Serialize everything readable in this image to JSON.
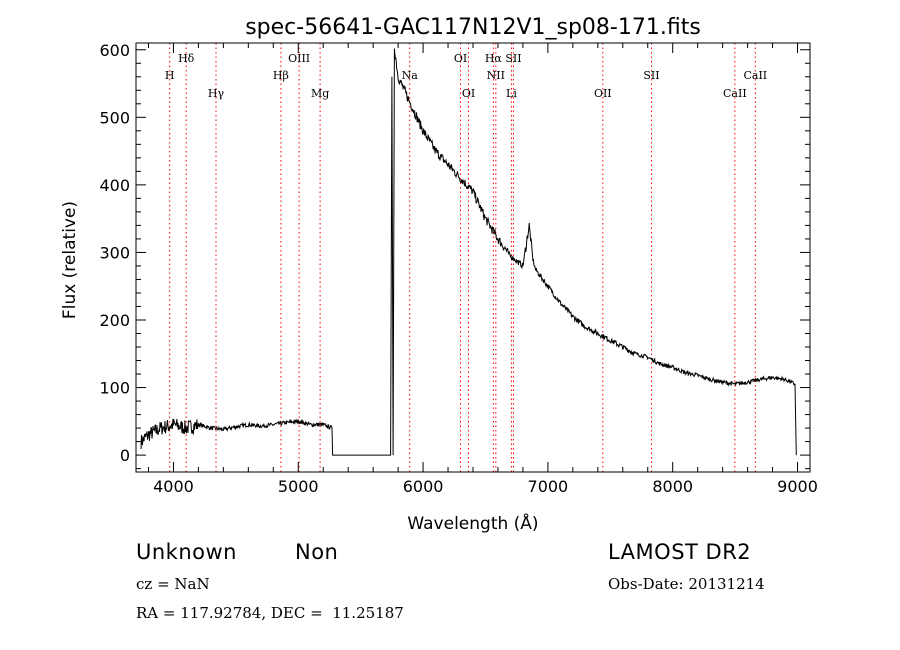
{
  "chart_data": {
    "type": "line",
    "title": "spec-56641-GAC117N12V1_sp08-171.fits",
    "xlabel": "Wavelength (Å)",
    "ylabel": "Flux (relative)",
    "xlim": [
      3700,
      9100
    ],
    "ylim": [
      -25,
      610
    ],
    "xticks": [
      4000,
      5000,
      6000,
      7000,
      8000,
      9000
    ],
    "yticks": [
      0,
      100,
      200,
      300,
      400,
      500,
      600
    ],
    "grid": false,
    "line_color": "#000000",
    "marker_color": "#ff0000",
    "series": [
      {
        "values_note_free": true,
        "x": [
          3740,
          3800,
          3900,
          4000,
          4100,
          4200,
          4300,
          4400,
          4500,
          4600,
          4700,
          4800,
          4900,
          5000,
          5100,
          5200,
          5270,
          5275,
          5740,
          5750,
          5760,
          5770,
          5800,
          5900,
          6000,
          6100,
          6200,
          6300,
          6400,
          6500,
          6600,
          6700,
          6800,
          6850,
          6880,
          6900,
          7000,
          7100,
          7200,
          7300,
          7400,
          7500,
          7600,
          7700,
          7800,
          7900,
          8000,
          8100,
          8200,
          8300,
          8400,
          8500,
          8600,
          8700,
          8800,
          8900,
          8980,
          8990
        ],
        "y": [
          20,
          30,
          40,
          45,
          40,
          45,
          40,
          38,
          42,
          45,
          43,
          45,
          48,
          50,
          45,
          45,
          40,
          0,
          0,
          560,
          0,
          605,
          560,
          520,
          480,
          450,
          430,
          410,
          390,
          350,
          320,
          295,
          280,
          340,
          290,
          275,
          250,
          225,
          205,
          190,
          180,
          170,
          160,
          150,
          145,
          135,
          130,
          122,
          118,
          112,
          108,
          105,
          108,
          112,
          115,
          112,
          105,
          0
        ]
      }
    ],
    "lines": [
      {
        "wavelength": 3970,
        "label": "H",
        "row": 2
      },
      {
        "wavelength": 4102,
        "label": "Hδ",
        "row": 1
      },
      {
        "wavelength": 4341,
        "label": "Hγ",
        "row": 3
      },
      {
        "wavelength": 4861,
        "label": "Hβ",
        "row": 2
      },
      {
        "wavelength": 5007,
        "label": "OIII",
        "row": 1
      },
      {
        "wavelength": 5175,
        "label": "Mg",
        "row": 3
      },
      {
        "wavelength": 5893,
        "label": "Na",
        "row": 2
      },
      {
        "wavelength": 6300,
        "label": "OI",
        "row": 1
      },
      {
        "wavelength": 6364,
        "label": "OI",
        "row": 3
      },
      {
        "wavelength": 6563,
        "label": "Hα",
        "row": 1
      },
      {
        "wavelength": 6583,
        "label": "NII",
        "row": 2
      },
      {
        "wavelength": 6708,
        "label": "Li",
        "row": 3
      },
      {
        "wavelength": 6724,
        "label": "SII",
        "row": 1
      },
      {
        "wavelength": 7440,
        "label": "OII",
        "row": 3
      },
      {
        "wavelength": 7830,
        "label": "SII",
        "row": 2
      },
      {
        "wavelength": 8498,
        "label": "CaII",
        "row": 3
      },
      {
        "wavelength": 8662,
        "label": "CaII",
        "row": 2
      }
    ]
  },
  "info": {
    "class": "Unknown",
    "subclass": "Non",
    "survey": "LAMOST DR2",
    "cz": "cz = NaN",
    "obs_date": "Obs-Date: 20131214",
    "radec": "RA = 117.92784, DEC =  11.25187"
  }
}
